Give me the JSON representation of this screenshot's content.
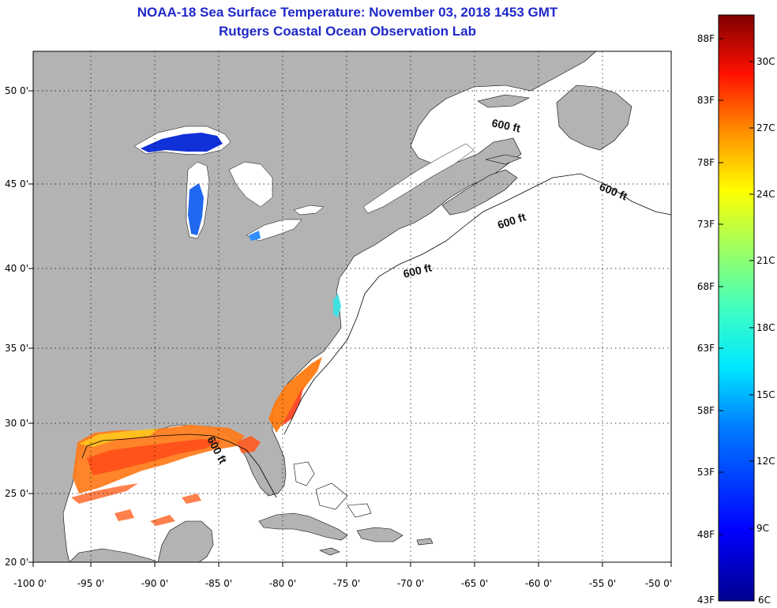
{
  "title": {
    "line1": "NOAA-18 Sea Surface Temperature:  November 03, 2018 1453 GMT",
    "line2": "Rutgers Coastal Ocean Observation Lab"
  },
  "axes": {
    "lon_labels": [
      "-100 0'",
      "-95 0'",
      "-90 0'",
      "-85 0'",
      "-80 0'",
      "-75 0'",
      "-70 0'",
      "-65 0'",
      "-60 0'",
      "-55 0'",
      "-50 0'"
    ],
    "lat_labels": [
      "50 0'",
      "45 0'",
      "40 0'",
      "35 0'",
      "30 0'",
      "25 0'",
      "20 0'"
    ]
  },
  "contours": {
    "label": "600 ft"
  },
  "colorbar": {
    "fahrenheit": [
      "88F",
      "83F",
      "78F",
      "73F",
      "68F",
      "63F",
      "58F",
      "53F",
      "48F",
      "43F"
    ],
    "celsius": [
      "30C",
      "27C",
      "24C",
      "21C",
      "18C",
      "15C",
      "12C",
      "9C",
      "6C"
    ]
  },
  "colors": {
    "land": "#b3b3b3",
    "water": "#ffffff",
    "title": "#1f28c8"
  }
}
